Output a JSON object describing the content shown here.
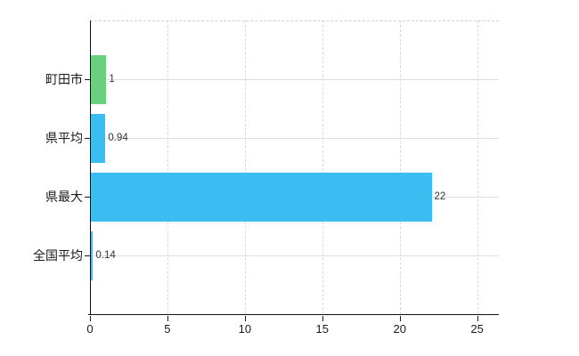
{
  "chart_data": {
    "type": "bar",
    "orientation": "horizontal",
    "title": "",
    "categories": [
      "町田市",
      "県平均",
      "県最大",
      "全国平均"
    ],
    "values": [
      1,
      0.94,
      22,
      0.14
    ],
    "value_labels": [
      "1",
      "0.94",
      "22",
      "0.14"
    ],
    "bar_colors": [
      "#6bd07e",
      "#3bbdf1",
      "#3bbdf1",
      "#3bbdf1"
    ],
    "x_axis": {
      "ticks": [
        "0",
        "5",
        "10",
        "15",
        "20",
        "25"
      ],
      "tick_values": [
        0,
        5,
        10,
        15,
        20,
        25
      ],
      "min": 0,
      "max": 26.4
    },
    "grid": {
      "vertical": "dashed",
      "horizontal": "solid"
    },
    "legend": "none"
  },
  "colors": {
    "bar_highlight": "#6bd07e",
    "bar_default": "#3bbdf1",
    "axis_line": "#111111",
    "grid_vertical": "#d8d8d8",
    "grid_horizontal": "#dce0d8",
    "plot_top_border": "#cfcfcf",
    "text": "#1a1a1a",
    "value_text": "#333333",
    "background": "#ffffff"
  }
}
